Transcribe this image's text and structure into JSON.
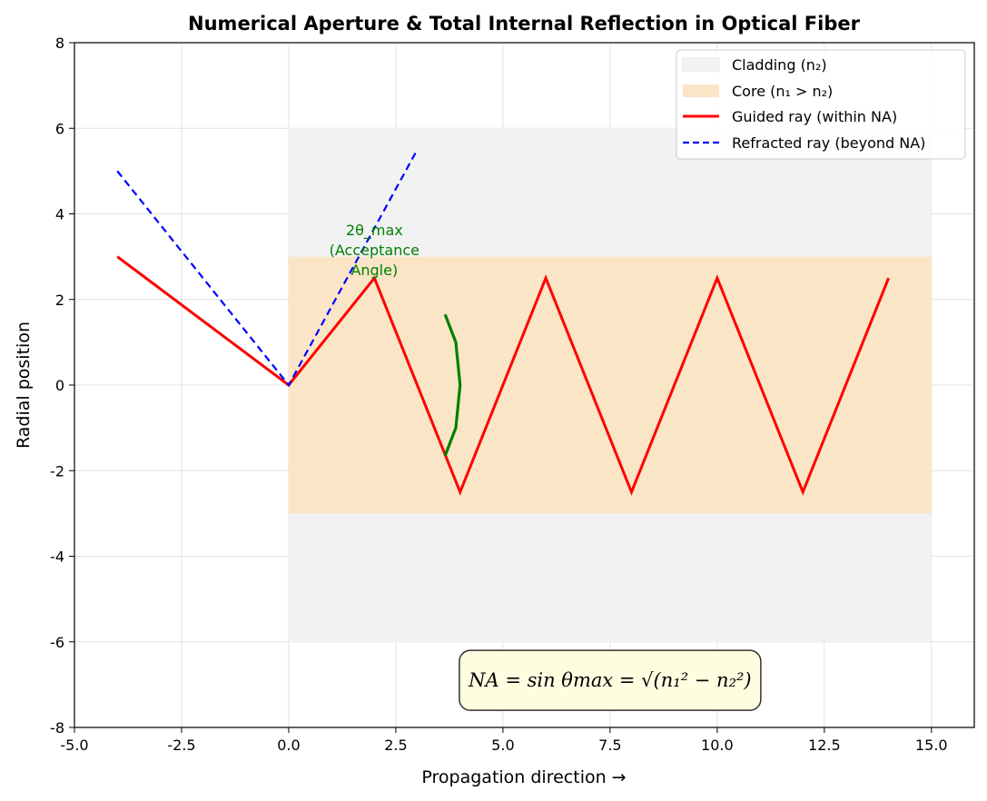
{
  "chart_data": {
    "type": "line",
    "title": "Numerical Aperture & Total Internal Reflection in Optical Fiber",
    "xlabel": "Propagation direction →",
    "ylabel": "Radial position",
    "xlim": [
      -5.0,
      16.0
    ],
    "ylim": [
      -8,
      8
    ],
    "xticks": [
      -5.0,
      -2.5,
      0.0,
      2.5,
      5.0,
      7.5,
      10.0,
      12.5,
      15.0
    ],
    "xtick_labels": [
      "-5.0",
      "-2.5",
      "0.0",
      "2.5",
      "5.0",
      "7.5",
      "10.0",
      "12.5",
      "15.0"
    ],
    "yticks": [
      -8,
      -6,
      -4,
      -2,
      0,
      2,
      4,
      6,
      8
    ],
    "ytick_labels": [
      "-8",
      "-6",
      "-4",
      "-2",
      "0",
      "2",
      "4",
      "6",
      "8"
    ],
    "grid": true,
    "legend_position": "top-right",
    "regions": [
      {
        "name": "Cladding (n₂)",
        "x": [
          0,
          15
        ],
        "y": [
          -6,
          6
        ],
        "color": "#f2f2f2"
      },
      {
        "name": "Core (n₁ > n₂)",
        "x": [
          0,
          15
        ],
        "y": [
          -3,
          3
        ],
        "color": "#fae6c6"
      }
    ],
    "series": [
      {
        "name": "Guided ray (within NA)",
        "style": "solid",
        "color": "#ff0000",
        "points": [
          [
            -4,
            3
          ],
          [
            0,
            0
          ],
          [
            2,
            2.5
          ],
          [
            4,
            -2.5
          ],
          [
            6,
            2.5
          ],
          [
            8,
            -2.5
          ],
          [
            10,
            2.5
          ],
          [
            12,
            -2.5
          ],
          [
            14,
            2.5
          ]
        ]
      },
      {
        "name": "Refracted ray (beyond NA)",
        "style": "dashed",
        "color": "#0000ff",
        "points": [
          [
            -4,
            5
          ],
          [
            0,
            0
          ],
          [
            3,
            5.5
          ]
        ]
      }
    ],
    "arc": {
      "color": "#008000",
      "points": [
        [
          3.65,
          1.65
        ],
        [
          3.9,
          1.0
        ],
        [
          4.0,
          0.0
        ],
        [
          3.9,
          -1.0
        ],
        [
          3.65,
          -1.65
        ]
      ]
    },
    "annotation": {
      "lines": [
        "2θ_max",
        "(Acceptance",
        "Angle)"
      ],
      "x": 2.0,
      "y": 3.5,
      "color": "#008000"
    },
    "formula": {
      "text": "NA = sin θmax = √(n₁² − n₂²)",
      "x": 7.5,
      "y": -6.9
    }
  }
}
